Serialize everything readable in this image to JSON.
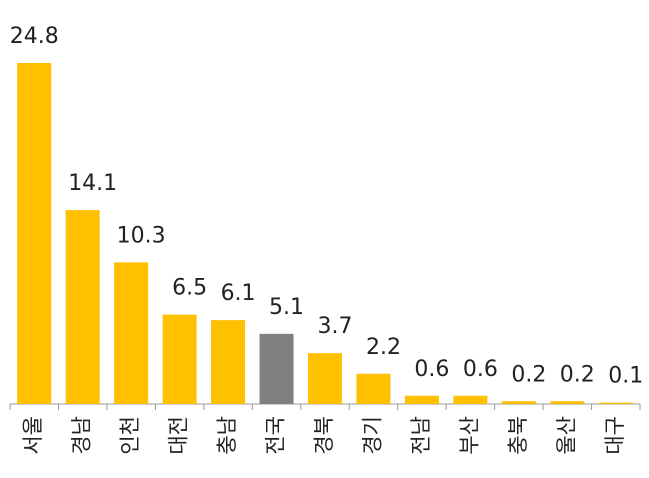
{
  "chart_data": {
    "type": "bar",
    "categories": [
      "서울",
      "경남",
      "인천",
      "대전",
      "충남",
      "전국",
      "경북",
      "경기",
      "전남",
      "부산",
      "충북",
      "울산",
      "대구"
    ],
    "values": [
      24.8,
      14.1,
      10.3,
      6.5,
      6.1,
      5.1,
      3.7,
      2.2,
      0.6,
      0.6,
      0.2,
      0.2,
      0.1
    ],
    "colors": [
      "#FFC000",
      "#FFC000",
      "#FFC000",
      "#FFC000",
      "#FFC000",
      "#808080",
      "#FFC000",
      "#FFC000",
      "#FFC000",
      "#FFC000",
      "#FFC000",
      "#FFC000",
      "#FFC000"
    ]
  }
}
